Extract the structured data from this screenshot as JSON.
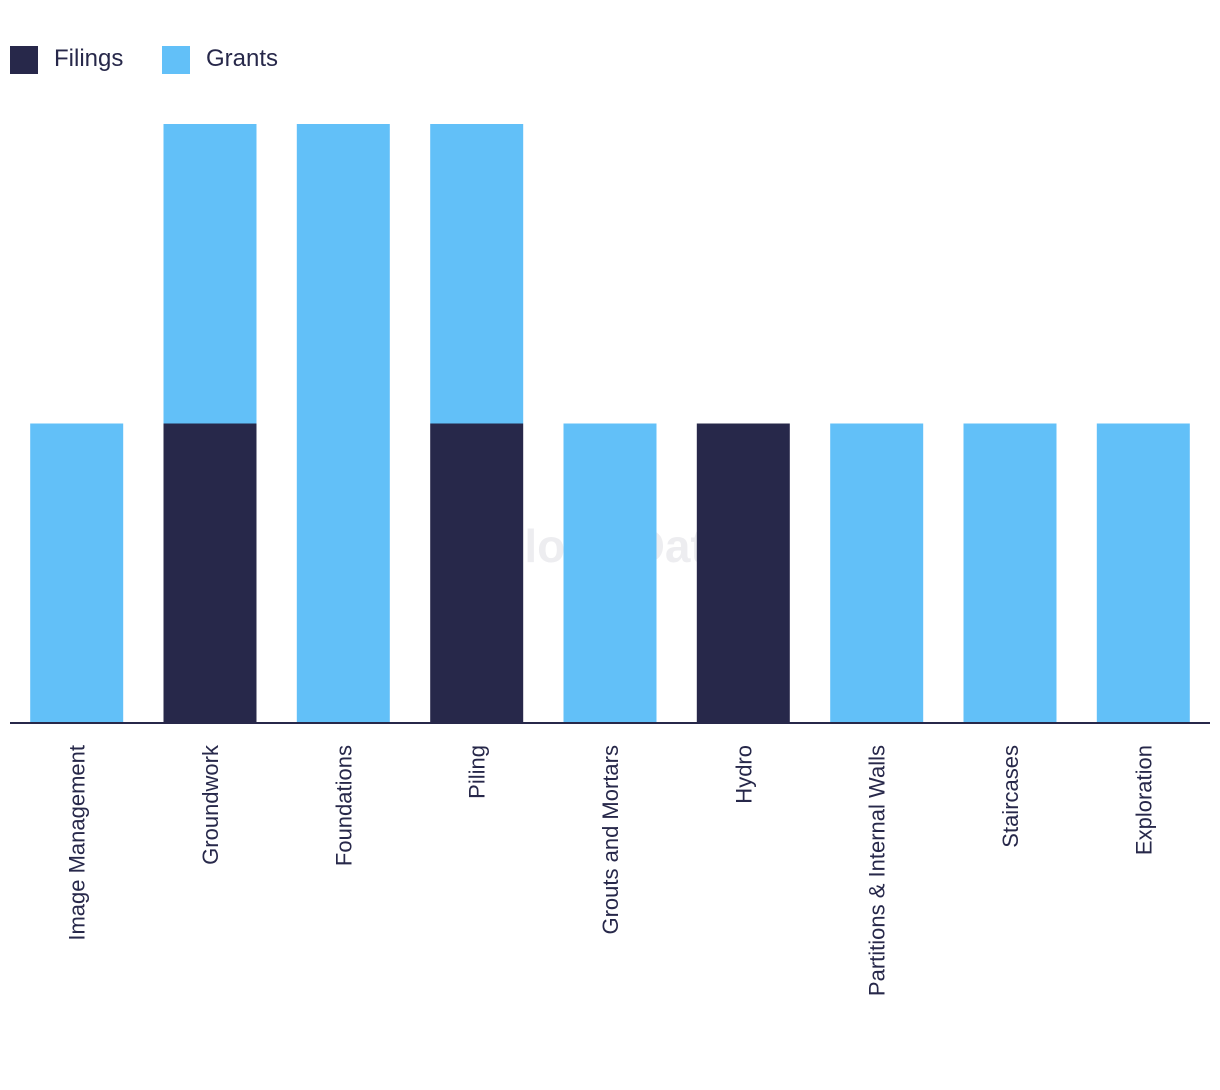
{
  "chart_data": {
    "type": "bar",
    "stacked": true,
    "categories": [
      "Image Management",
      "Groundwork",
      "Foundations",
      "Piling",
      "Grouts and Mortars",
      "Hydro",
      "Partitions & Internal Walls",
      "Staircases",
      "Exploration"
    ],
    "series": [
      {
        "name": "Filings",
        "color": "#27284a",
        "values": [
          0,
          1,
          0,
          1,
          0,
          1,
          0,
          0,
          0
        ]
      },
      {
        "name": "Grants",
        "color": "#62c0f8",
        "values": [
          1,
          1,
          2,
          1,
          1,
          0,
          1,
          1,
          1
        ]
      }
    ],
    "ylim": [
      0,
      2
    ],
    "legend_position": "top-left",
    "watermark": "GlobalData",
    "title": "",
    "xlabel": "",
    "ylabel": ""
  }
}
